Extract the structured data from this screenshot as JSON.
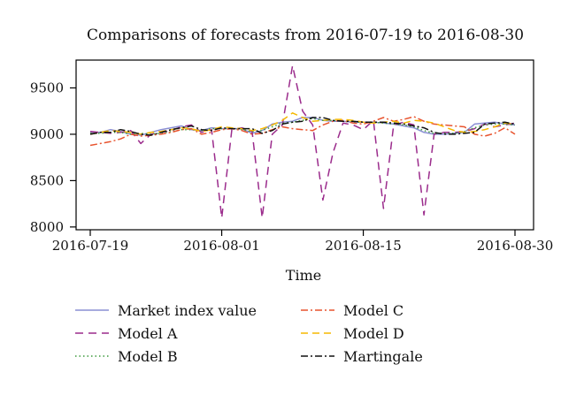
{
  "chart_data": {
    "type": "line",
    "title": "Comparisons of forecasts from 2016-07-19 to 2016-08-30",
    "xlabel": "Time",
    "ylabel": "",
    "x": [
      "2016-07-19",
      "2016-07-20",
      "2016-07-21",
      "2016-07-22",
      "2016-07-23",
      "2016-07-24",
      "2016-07-25",
      "2016-07-26",
      "2016-07-27",
      "2016-07-28",
      "2016-07-29",
      "2016-07-30",
      "2016-07-31",
      "2016-08-01",
      "2016-08-02",
      "2016-08-03",
      "2016-08-04",
      "2016-08-05",
      "2016-08-06",
      "2016-08-07",
      "2016-08-08",
      "2016-08-09",
      "2016-08-10",
      "2016-08-11",
      "2016-08-12",
      "2016-08-13",
      "2016-08-14",
      "2016-08-15",
      "2016-08-16",
      "2016-08-17",
      "2016-08-18",
      "2016-08-19",
      "2016-08-20",
      "2016-08-21",
      "2016-08-22",
      "2016-08-23",
      "2016-08-24",
      "2016-08-25",
      "2016-08-26",
      "2016-08-27",
      "2016-08-28",
      "2016-08-29",
      "2016-08-30"
    ],
    "x_ticks": [
      "2016-07-19",
      "2016-08-01",
      "2016-08-15",
      "2016-08-30"
    ],
    "y_ticks": [
      8000,
      8500,
      9000,
      9500
    ],
    "ylim": [
      7970,
      9800
    ],
    "series": [
      {
        "name": "Market index value",
        "color": "#8a8fd4",
        "dash": "",
        "values": [
          9020,
          9020,
          9050,
          9030,
          9000,
          8990,
          9020,
          9050,
          9070,
          9090,
          9050,
          9040,
          9070,
          9060,
          9060,
          9060,
          9010,
          9040,
          9110,
          9130,
          9140,
          9180,
          9180,
          9150,
          9140,
          9140,
          9130,
          9130,
          9130,
          9120,
          9110,
          9090,
          9070,
          9020,
          9000,
          9000,
          9010,
          9020,
          9110,
          9120,
          9130,
          9110,
          9100
        ]
      },
      {
        "name": "Model A",
        "color": "#9b2c8c",
        "dash": "9,6",
        "values": [
          9030,
          9020,
          9010,
          9020,
          9040,
          8900,
          9000,
          9020,
          9040,
          9080,
          9100,
          9020,
          9050,
          8100,
          9050,
          9070,
          9030,
          8100,
          9000,
          9100,
          9740,
          9250,
          9100,
          8290,
          8800,
          9120,
          9100,
          9050,
          9150,
          8200,
          9100,
          9130,
          9100,
          8130,
          9000,
          9020,
          9020,
          9030,
          9060,
          9110,
          9080,
          9100,
          9120
        ]
      },
      {
        "name": "Model B",
        "color": "#3c9a3c",
        "dash": "1.5,3",
        "values": [
          9010,
          9010,
          9020,
          9020,
          9000,
          9010,
          9000,
          9010,
          9030,
          9050,
          9050,
          9040,
          9060,
          9060,
          9060,
          9050,
          9030,
          9040,
          9080,
          9120,
          9130,
          9150,
          9170,
          9150,
          9150,
          9140,
          9130,
          9130,
          9130,
          9120,
          9110,
          9100,
          9080,
          9040,
          9010,
          9010,
          9010,
          9030,
          9070,
          9100,
          9110,
          9110,
          9100
        ]
      },
      {
        "name": "Model C",
        "color": "#e8542f",
        "dash": "8,3,2,3",
        "values": [
          8880,
          8900,
          8920,
          8950,
          9000,
          8980,
          8990,
          9000,
          9020,
          9050,
          9060,
          9000,
          9020,
          9050,
          9060,
          9040,
          9000,
          9010,
          9050,
          9080,
          9060,
          9050,
          9040,
          9100,
          9140,
          9150,
          9120,
          9110,
          9140,
          9180,
          9140,
          9160,
          9190,
          9140,
          9110,
          9100,
          9090,
          9080,
          9000,
          8980,
          9010,
          9070,
          9000
        ]
      },
      {
        "name": "Model D",
        "color": "#f5b800",
        "dash": "8,5",
        "values": [
          9000,
          9020,
          9040,
          9030,
          9020,
          9000,
          9020,
          9030,
          9050,
          9070,
          9060,
          9030,
          9050,
          9080,
          9070,
          9060,
          9040,
          9060,
          9100,
          9150,
          9230,
          9180,
          9140,
          9150,
          9160,
          9160,
          9150,
          9130,
          9120,
          9130,
          9140,
          9120,
          9150,
          9140,
          9120,
          9080,
          9040,
          9020,
          9030,
          9050,
          9080,
          9120,
          9110
        ]
      },
      {
        "name": "Martingale",
        "color": "#111111",
        "dash": "8,3,2,3",
        "values": [
          9000,
          9020,
          9020,
          9050,
          9030,
          9000,
          8990,
          9020,
          9050,
          9070,
          9090,
          9050,
          9040,
          9070,
          9060,
          9060,
          9060,
          9010,
          9040,
          9110,
          9130,
          9140,
          9180,
          9180,
          9150,
          9140,
          9140,
          9130,
          9130,
          9130,
          9120,
          9110,
          9090,
          9070,
          9020,
          9000,
          9000,
          9010,
          9020,
          9110,
          9120,
          9130,
          9110
        ]
      }
    ],
    "legend_position": "bottom",
    "grid": false
  }
}
